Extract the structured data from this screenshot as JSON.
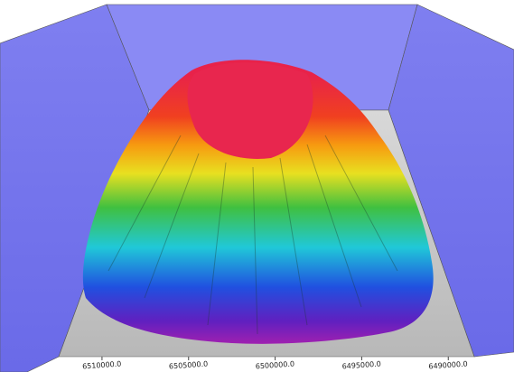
{
  "chart_data": {
    "type": "surface",
    "xlim": [
      6512500,
      6488500
    ],
    "xticks": [
      {
        "value": 6510000,
        "label": "6510000.0"
      },
      {
        "value": 6505000,
        "label": "6505000.0"
      },
      {
        "value": 6500000,
        "label": "6500000.0"
      },
      {
        "value": 6495000,
        "label": "6495000.0"
      },
      {
        "value": 6490000,
        "label": "6490000.0"
      }
    ]
  }
}
